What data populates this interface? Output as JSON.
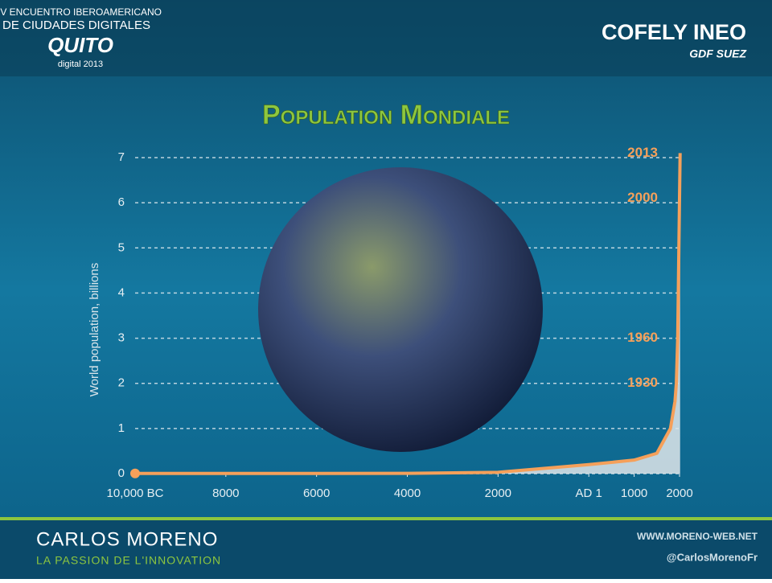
{
  "header": {
    "event_line1": "XIV ENCUENTRO IBEROAMERICANO",
    "event_line2": "DE CIUDADES DIGITALES",
    "event_logo": "QUITO",
    "event_sub": "digital 2013",
    "brand": "COFELY INEO",
    "brand_sub": "GDF SUEZ"
  },
  "chart_data": {
    "type": "line",
    "title": "Population Mondiale",
    "y_label": "World population, billions",
    "series": [
      {
        "name": "population",
        "color": "#f5a05a",
        "x": [
          -10000,
          -8000,
          -6000,
          -4000,
          -2000,
          1,
          1000,
          1500,
          1800,
          1900,
          1930,
          1960,
          2000,
          2013
        ],
        "values": [
          0.004,
          0.005,
          0.005,
          0.007,
          0.03,
          0.2,
          0.3,
          0.45,
          1,
          1.6,
          2,
          3,
          6.1,
          7.1
        ]
      }
    ],
    "annotations": [
      {
        "label": "1930",
        "value": 2
      },
      {
        "label": "1960",
        "value": 3
      },
      {
        "label": "2000",
        "value": 6.1
      },
      {
        "label": "2013",
        "value": 7.1
      }
    ],
    "xlim": [
      -10000,
      2000
    ],
    "xticks": [
      {
        "value": -10000,
        "label": "10,000 BC"
      },
      {
        "value": -8000,
        "label": "8000"
      },
      {
        "value": -6000,
        "label": "6000"
      },
      {
        "value": -4000,
        "label": "4000"
      },
      {
        "value": -2000,
        "label": "2000"
      },
      {
        "value": 1,
        "label": "AD 1"
      },
      1000,
      2000
    ],
    "ylim": [
      0,
      7
    ],
    "yticks": [
      0,
      1,
      2,
      3,
      4,
      5,
      6,
      7
    ],
    "grid": true
  },
  "footer": {
    "author": "CARLOS MORENO",
    "tagline": "LA PASSION DE L'INNOVATION",
    "website": "WWW.MORENO-WEB.NET",
    "twitter": "@CarlosMorenoFr"
  }
}
